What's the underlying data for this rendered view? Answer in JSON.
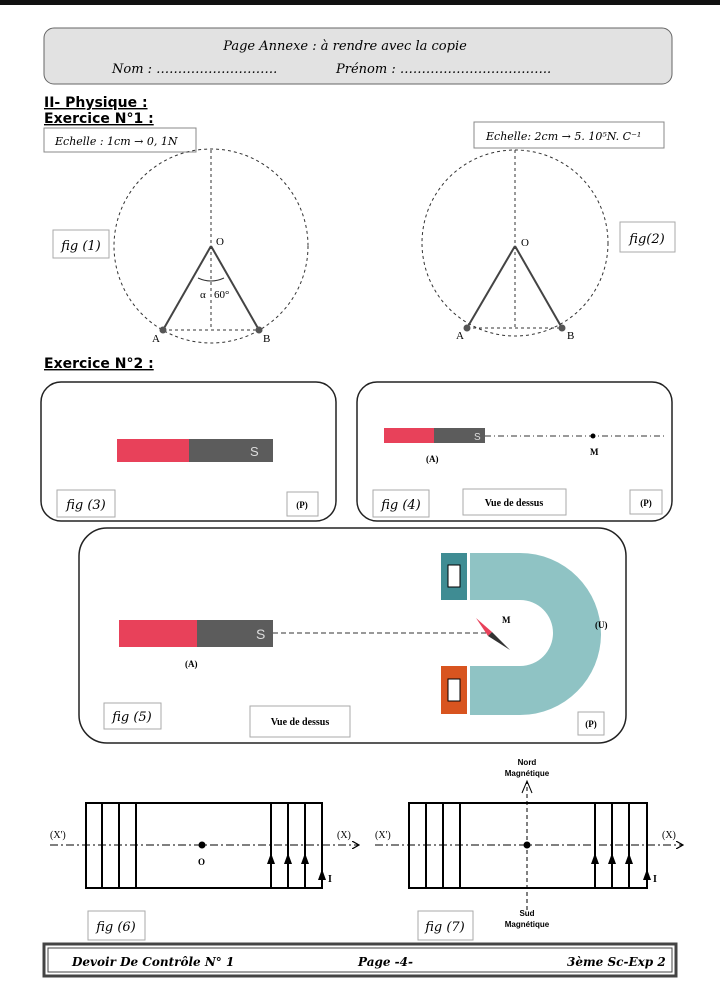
{
  "header": {
    "title": "Page Annexe : à rendre avec la copie",
    "nom": "Nom : ……………………….",
    "prenom": "Prénom : …………………………….."
  },
  "section": "II- Physique :",
  "exercice1": {
    "title": "Exercice N°1 :",
    "scale1": "Echelle : 1cm  → 0, 1N",
    "scale2": "Echelle: 2cm  →  5. 10⁵N. C⁻¹",
    "fig1": {
      "label": "fig (1)",
      "O": "O",
      "A": "A",
      "B": "B",
      "alpha": "α",
      "angle": "60°"
    },
    "fig2": {
      "label": "fig(2)",
      "O": "O",
      "A": "A",
      "B": "B"
    }
  },
  "exercice2": {
    "title": "Exercice N°2 :",
    "fig3": {
      "label": "fig (3)",
      "pole": "S",
      "plane": "(P)"
    },
    "fig4": {
      "label": "fig (4)",
      "pole": "S",
      "magnet": "(A)",
      "point": "M",
      "view": "Vue de dessus",
      "plane": "(P)"
    },
    "fig5": {
      "label": "fig (5)",
      "pole": "S",
      "magnet": "(A)",
      "point": "M",
      "u_magnet": "(U)",
      "view": "Vue de dessus",
      "plane": "(P)"
    },
    "fig6": {
      "label": "fig (6)",
      "axis_left": "(X')",
      "axis_right": "(X)",
      "center": "O",
      "current": "I"
    },
    "fig7": {
      "label": "fig (7)",
      "axis_left": "(X')",
      "axis_right": "(X)",
      "current": "I",
      "north": [
        "Nord",
        "Magnétique"
      ],
      "south": [
        "Sud",
        "Magnétique"
      ]
    }
  },
  "footer": {
    "left": "Devoir De Contrôle N° 1",
    "center": "Page -4-",
    "right": "3ème Sc-Exp 2"
  },
  "colors": {
    "magnet_red": "#e8415a",
    "magnet_gray": "#5c5c5c",
    "u_magnet": "#8fc3c4",
    "u_pole_top": "#3f8c93",
    "u_pole_bottom": "#d8541f"
  }
}
